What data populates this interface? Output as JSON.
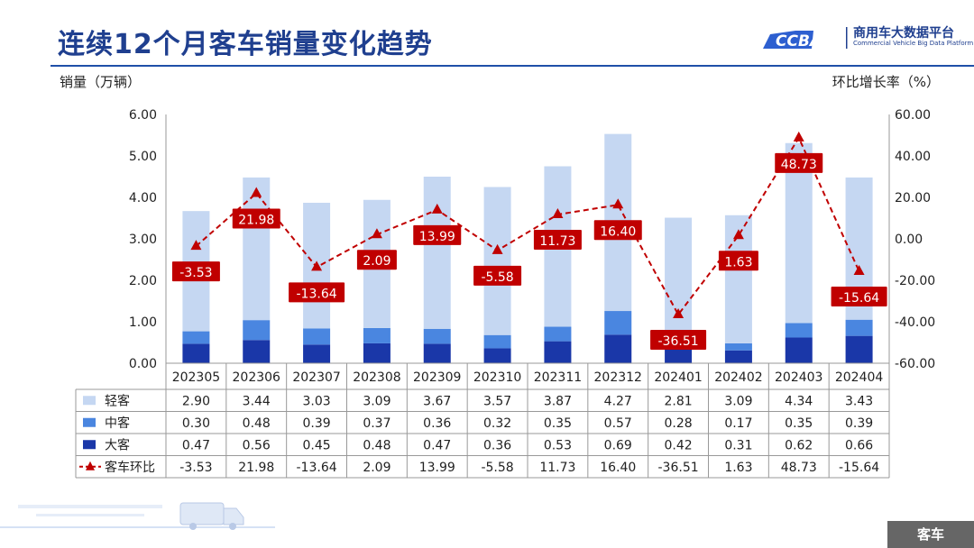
{
  "header": {
    "title": "连续12个月客车销量变化趋势",
    "logo_mark": "CCBA",
    "logo_name": "商用车大数据平台",
    "logo_sub": "Commercial Vehicle Big Data Platform"
  },
  "footer": {
    "tag": "客车"
  },
  "colors": {
    "light": "#c5d7f2",
    "medium": "#4a86e0",
    "dark": "#1a37a8",
    "line": "#c00000",
    "title": "#1f3f8f"
  },
  "chart_data": {
    "type": "bar",
    "stacked": true,
    "categories": [
      "202305",
      "202306",
      "202307",
      "202308",
      "202309",
      "202310",
      "202311",
      "202312",
      "202401",
      "202402",
      "202403",
      "202404"
    ],
    "ylabel": "销量（万辆）",
    "ylabel_right": "环比增长率（%）",
    "ylim": [
      0,
      6
    ],
    "y_ticks": [
      "0.00",
      "1.00",
      "2.00",
      "3.00",
      "4.00",
      "5.00",
      "6.00"
    ],
    "y2lim": [
      -60,
      60
    ],
    "y2_ticks": [
      "-60.00",
      "-40.00",
      "-20.00",
      "0.00",
      "20.00",
      "40.00",
      "60.00"
    ],
    "grid": false,
    "series": [
      {
        "name": "轻客",
        "values": [
          2.9,
          3.44,
          3.03,
          3.09,
          3.67,
          3.57,
          3.87,
          4.27,
          2.81,
          3.09,
          4.34,
          3.43
        ],
        "color": "#c5d7f2"
      },
      {
        "name": "中客",
        "values": [
          0.3,
          0.48,
          0.39,
          0.37,
          0.36,
          0.32,
          0.35,
          0.57,
          0.28,
          0.17,
          0.35,
          0.39
        ],
        "color": "#4a86e0"
      },
      {
        "name": "大客",
        "values": [
          0.47,
          0.56,
          0.45,
          0.48,
          0.47,
          0.36,
          0.53,
          0.69,
          0.42,
          0.31,
          0.62,
          0.66
        ],
        "color": "#1a37a8"
      },
      {
        "name": "客车环比",
        "type": "line",
        "axis": "right",
        "values": [
          -3.53,
          21.98,
          -13.64,
          2.09,
          13.99,
          -5.58,
          11.73,
          16.4,
          -36.51,
          1.63,
          48.73,
          -15.64
        ],
        "labels": [
          "-3.53",
          "21.98",
          "-13.64",
          "2.09",
          "13.99",
          "-5.58",
          "11.73",
          "16.40",
          "-36.51",
          "1.63",
          "48.73",
          "-15.64"
        ],
        "color": "#c00000"
      }
    ],
    "table_rows": [
      {
        "name": "轻客",
        "cells": [
          "2.90",
          "3.44",
          "3.03",
          "3.09",
          "3.67",
          "3.57",
          "3.87",
          "4.27",
          "2.81",
          "3.09",
          "4.34",
          "3.43"
        ]
      },
      {
        "name": "中客",
        "cells": [
          "0.30",
          "0.48",
          "0.39",
          "0.37",
          "0.36",
          "0.32",
          "0.35",
          "0.57",
          "0.28",
          "0.17",
          "0.35",
          "0.39"
        ]
      },
      {
        "name": "大客",
        "cells": [
          "0.47",
          "0.56",
          "0.45",
          "0.48",
          "0.47",
          "0.36",
          "0.53",
          "0.69",
          "0.42",
          "0.31",
          "0.62",
          "0.66"
        ]
      },
      {
        "name": "客车环比",
        "cells": [
          "-3.53",
          "21.98",
          "-13.64",
          "2.09",
          "13.99",
          "-5.58",
          "11.73",
          "16.40",
          "-36.51",
          "1.63",
          "48.73",
          "-15.64"
        ]
      }
    ]
  }
}
